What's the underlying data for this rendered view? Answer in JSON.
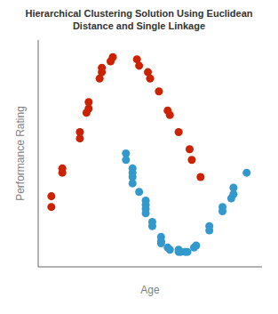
{
  "chart_data": {
    "type": "scatter",
    "title": "Hierarchical Clustering Solution Using Euclidean\nDistance and Single Linkage",
    "xlabel": "Age",
    "ylabel": "Performance Rating",
    "xlim": [
      -0.02,
      1.0
    ],
    "ylim": [
      0.0,
      1.06
    ],
    "xticks": [],
    "yticks": [
      0.1,
      0.2,
      0.3,
      0.4,
      0.5,
      0.6,
      0.7,
      0.8,
      0.9,
      1.0
    ],
    "tick_labels": false,
    "grid": false,
    "series": [
      {
        "color": "#cc2200",
        "x": [
          0.04,
          0.04,
          0.09,
          0.09,
          0.17,
          0.17,
          0.2,
          0.21,
          0.21,
          0.26,
          0.27,
          0.27,
          0.31,
          0.32,
          0.43,
          0.44,
          0.48,
          0.49,
          0.53,
          0.57,
          0.58,
          0.62,
          0.67,
          0.68,
          0.72
        ],
        "y": [
          0.28,
          0.33,
          0.44,
          0.46,
          0.6,
          0.63,
          0.72,
          0.74,
          0.77,
          0.88,
          0.91,
          0.93,
          0.96,
          0.98,
          0.97,
          0.94,
          0.91,
          0.88,
          0.82,
          0.73,
          0.71,
          0.63,
          0.55,
          0.5,
          0.42
        ]
      },
      {
        "color": "#3399cc",
        "x": [
          0.38,
          0.38,
          0.41,
          0.41,
          0.41,
          0.41,
          0.44,
          0.47,
          0.47,
          0.47,
          0.47,
          0.5,
          0.5,
          0.54,
          0.54,
          0.54,
          0.57,
          0.58,
          0.62,
          0.62,
          0.63,
          0.65,
          0.66,
          0.69,
          0.7,
          0.76,
          0.76,
          0.82,
          0.82,
          0.86,
          0.87,
          0.87,
          0.93
        ],
        "y": [
          0.53,
          0.5,
          0.46,
          0.44,
          0.42,
          0.39,
          0.35,
          0.31,
          0.29,
          0.27,
          0.25,
          0.21,
          0.19,
          0.14,
          0.12,
          0.11,
          0.09,
          0.08,
          0.08,
          0.07,
          0.07,
          0.07,
          0.07,
          0.09,
          0.1,
          0.17,
          0.19,
          0.26,
          0.28,
          0.32,
          0.34,
          0.37,
          0.44
        ]
      }
    ]
  }
}
